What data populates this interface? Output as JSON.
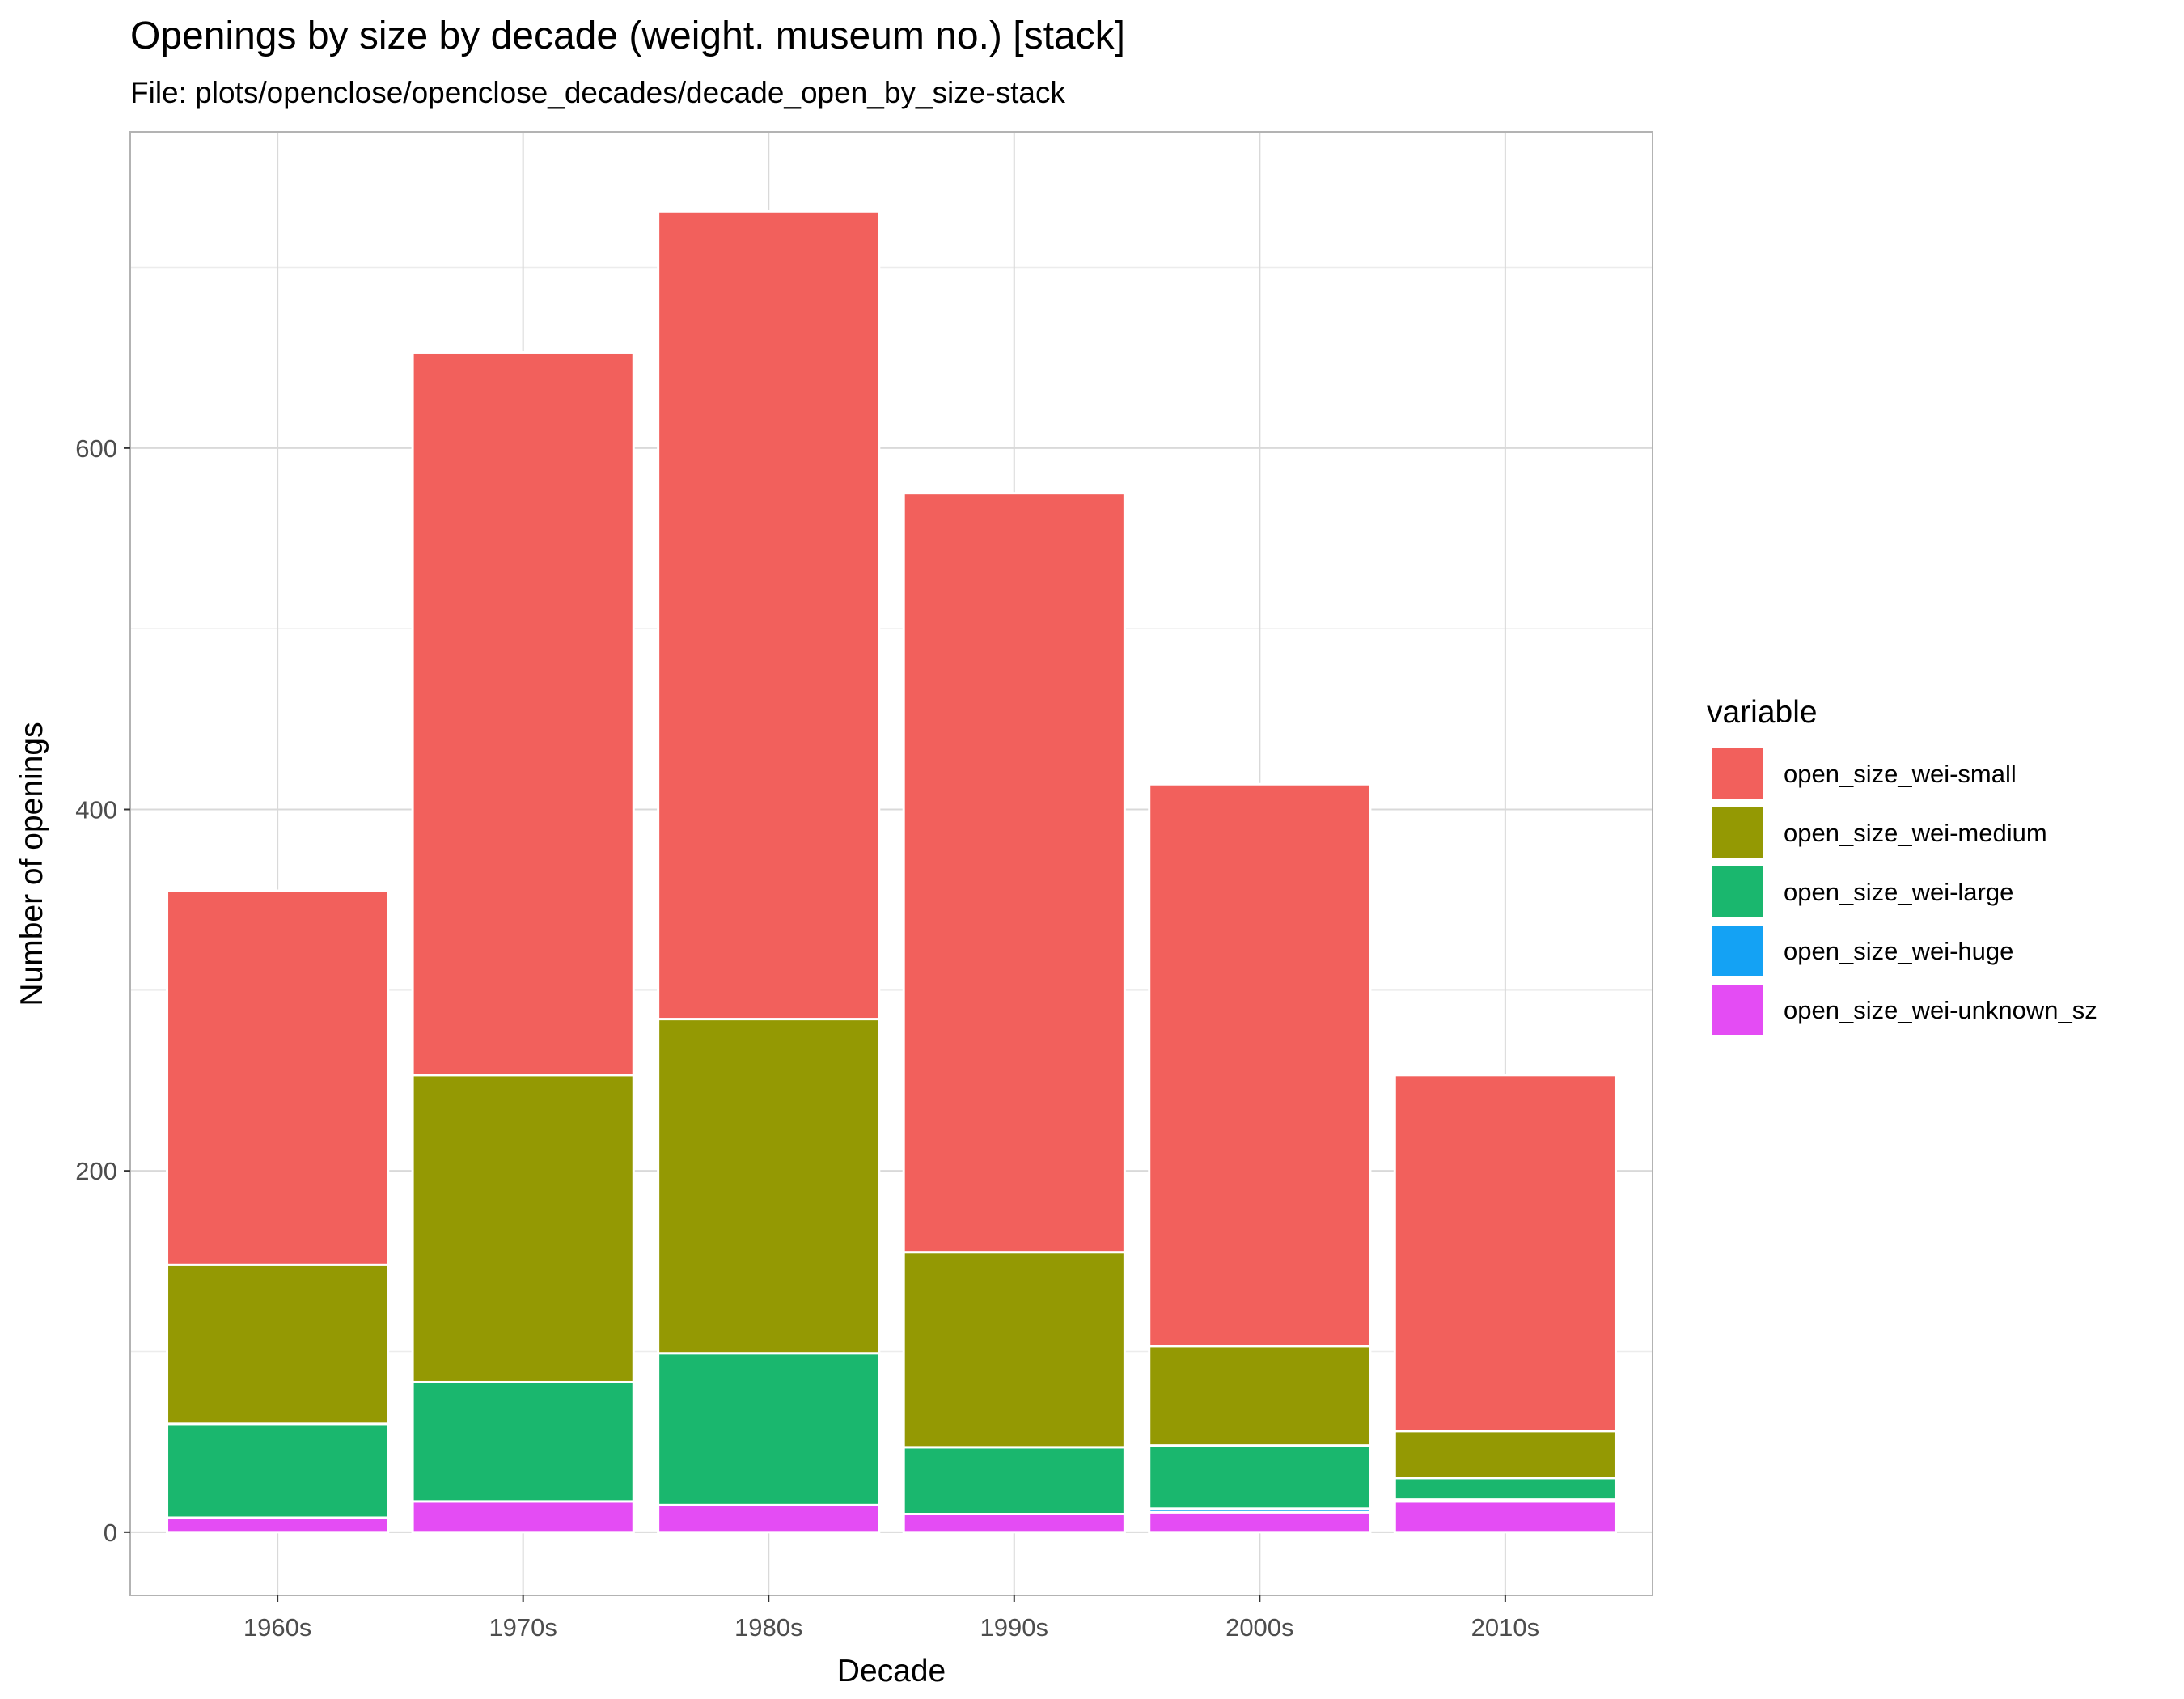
{
  "chart_data": {
    "type": "bar",
    "stacked": true,
    "title": "Openings by size by decade (weight. museum no.) [stack]",
    "subtitle": "File: plots/openclose/openclose_decades/decade_open_by_size-stack",
    "xlabel": "Decade",
    "ylabel": "Number of openings",
    "categories": [
      "1960s",
      "1970s",
      "1980s",
      "1990s",
      "2000s",
      "2010s"
    ],
    "ylim": [
      -35,
      775
    ],
    "yticks": [
      0,
      200,
      400,
      600
    ],
    "grid": true,
    "legend": {
      "title": "variable",
      "position": "right"
    },
    "series": [
      {
        "name": "open_size_wei-unknown_sz",
        "color": "#E44CF4",
        "values": [
          8,
          17,
          15,
          10,
          11,
          17
        ]
      },
      {
        "name": "open_size_wei-huge",
        "color": "#14A2F4",
        "values": [
          0,
          0,
          0,
          0,
          2,
          1
        ]
      },
      {
        "name": "open_size_wei-large",
        "color": "#1AB76E",
        "values": [
          52,
          66,
          84,
          37,
          35,
          12
        ]
      },
      {
        "name": "open_size_wei-medium",
        "color": "#949903",
        "values": [
          88,
          170,
          185,
          108,
          55,
          26
        ]
      },
      {
        "name": "open_size_wei-small",
        "color": "#F2605C",
        "values": [
          207,
          400,
          447,
          420,
          311,
          197
        ]
      }
    ],
    "legend_order": [
      "open_size_wei-small",
      "open_size_wei-medium",
      "open_size_wei-large",
      "open_size_wei-huge",
      "open_size_wei-unknown_sz"
    ]
  }
}
